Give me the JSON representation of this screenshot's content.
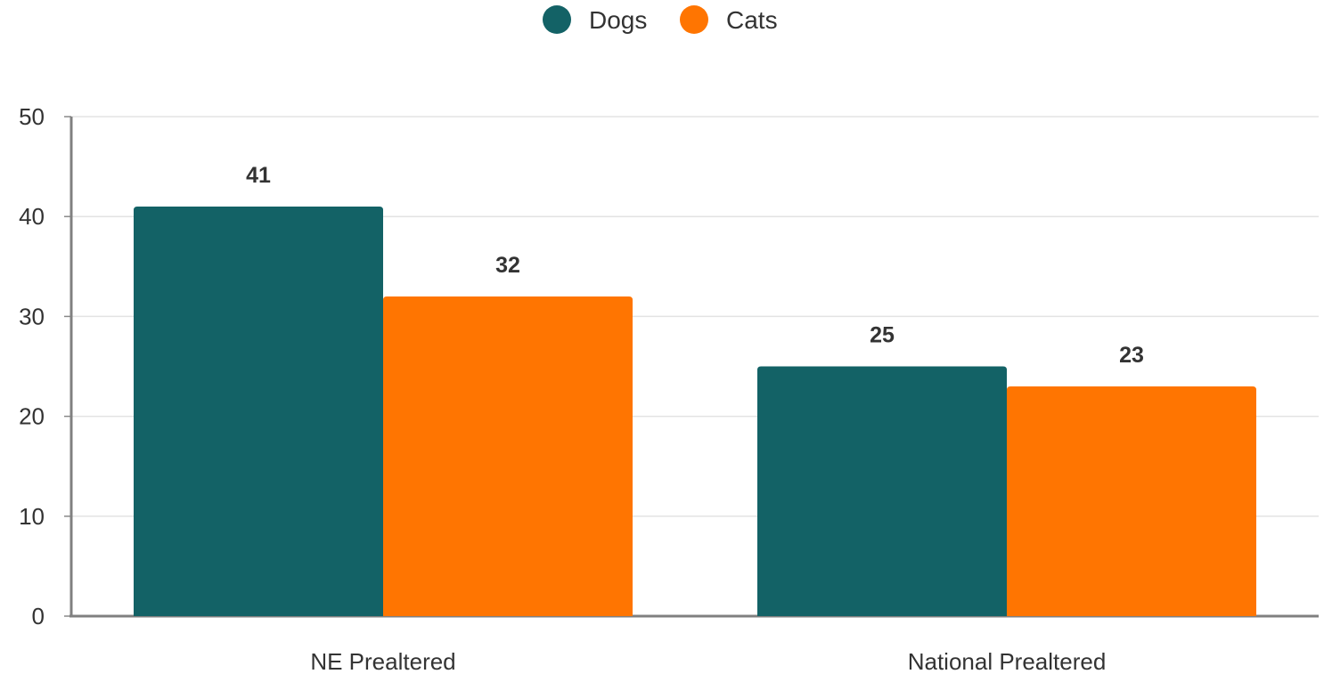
{
  "chart_data": {
    "type": "bar",
    "categories": [
      "NE Prealtered",
      "National Prealtered"
    ],
    "series": [
      {
        "name": "Dogs",
        "color": "#136266",
        "values": [
          41,
          25
        ]
      },
      {
        "name": "Cats",
        "color": "#FF7501",
        "values": [
          32,
          23
        ]
      }
    ],
    "ylim": [
      0,
      50
    ],
    "yticks": [
      0,
      10,
      20,
      30,
      40,
      50
    ],
    "grid": true,
    "legend_position": "top-center",
    "data_labels": true
  }
}
